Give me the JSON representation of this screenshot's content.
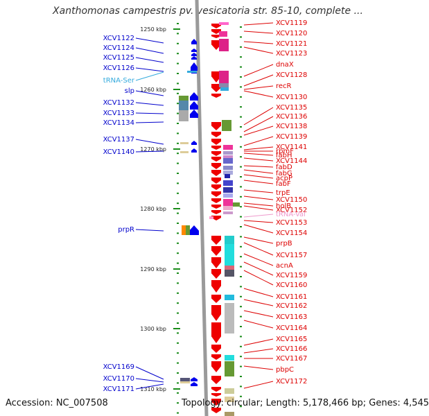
{
  "title": "Xanthomonas campestris pv. vesicatoria str. 85-10, complete ...",
  "footer": {
    "accession": "Accession: NC_007508",
    "topology": "Topology: circular; Length: 5,178,466 bp; Genes: 4,545"
  },
  "colors": {
    "ruler_tick": "#1a8c1a",
    "label_left": "#0000cc",
    "label_right": "#dd0000",
    "trna_left": "#33aadd",
    "trna_right": "#ee99cc",
    "gene_plus": "#0000ee",
    "gene_minus": "#ee0000",
    "backbone": "#9a9a9a"
  },
  "ruler": {
    "unit": "kbp",
    "labels": [
      "1250 kbp",
      "1260 kbp",
      "1270 kbp",
      "1280 kbp",
      "1290 kbp",
      "1300 kbp",
      "1310 kbp"
    ]
  },
  "left_genes": [
    "XCV1122",
    "XCV1124",
    "XCV1125",
    "XCV1126",
    "tRNA-Ser",
    "slp",
    "XCV1132",
    "XCV1133",
    "XCV1134",
    "XCV1137",
    "XCV1140",
    "prpR",
    "XCV1169",
    "XCV1170",
    "XCV1171"
  ],
  "right_genes": [
    "XCV1119",
    "XCV1120",
    "XCV1121",
    "XCV1123",
    "dnaX",
    "XCV1128",
    "recR",
    "XCV1130",
    "XCV1135",
    "XCV1136",
    "XCV1138",
    "XCV1139",
    "XCV1141",
    "rpmF",
    "fabH",
    "XCV1144",
    "fabD",
    "fabG",
    "acpP",
    "fabF",
    "trpE",
    "XCV1150",
    "holB",
    "XCV1152",
    "tRNA-Val",
    "XCV1153",
    "XCV1154",
    "prpB",
    "XCV1157",
    "acnA",
    "XCV1159",
    "XCV1160",
    "XCV1161",
    "XCV1162",
    "XCV1163",
    "XCV1164",
    "XCV1165",
    "XCV1166",
    "XCV1167",
    "pbpC",
    "XCV1172"
  ]
}
